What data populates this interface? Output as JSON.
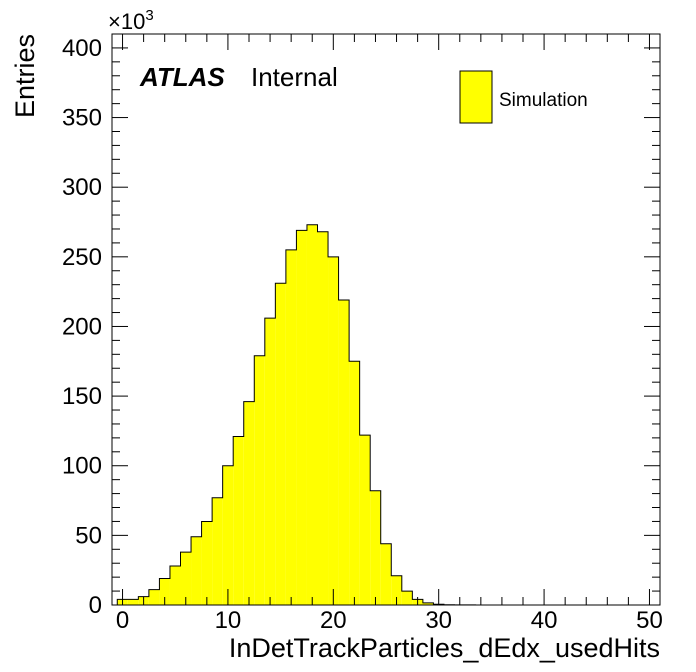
{
  "chart_data": {
    "type": "bar",
    "title": "",
    "xlabel": "InDetTrackParticles_dEdx_usedHits",
    "ylabel": "Entries",
    "y_multiplier_label": "×10",
    "y_multiplier_exponent": "3",
    "xlim": [
      -1,
      51
    ],
    "ylim": [
      0,
      410
    ],
    "x_ticks": [
      0,
      10,
      20,
      30,
      40,
      50
    ],
    "y_ticks": [
      0,
      50,
      100,
      150,
      200,
      250,
      300,
      350,
      400
    ],
    "grid": false,
    "legend_position": "top-right",
    "experiment_label": "ATLAS",
    "status_label": "Internal",
    "series": [
      {
        "name": "Simulation",
        "color": "#ffff00",
        "bin_width": 1,
        "bin_start": -0.5,
        "values": [
          4,
          4,
          6,
          11,
          19,
          28,
          38,
          49,
          60,
          77,
          100,
          121,
          146,
          179,
          206,
          231,
          255,
          269,
          273,
          268,
          250,
          219,
          175,
          122,
          82,
          44,
          21,
          10,
          4,
          1.5,
          0.5,
          0.2,
          0.1,
          0.05,
          0.02,
          0,
          0,
          0,
          0,
          0,
          0,
          0,
          0,
          0,
          0,
          0,
          0,
          0,
          0,
          0,
          0
        ]
      }
    ]
  }
}
